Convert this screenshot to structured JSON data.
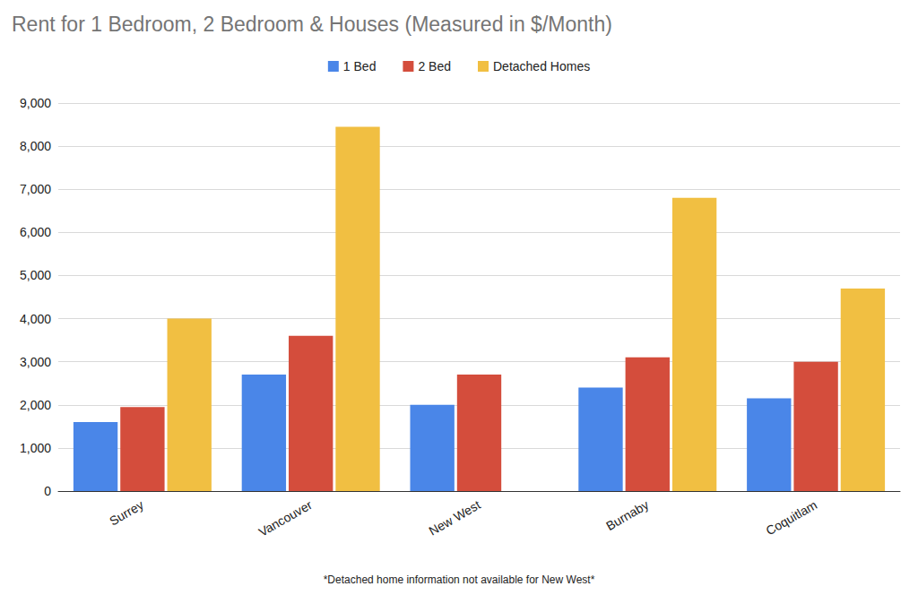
{
  "chart_data": {
    "type": "bar",
    "title": "Rent for 1 Bedroom, 2 Bedroom & Houses (Measured in $/Month)",
    "annotation": "*Detached home information not available for New West*",
    "categories": [
      "Surrey",
      "Vancouver",
      "New West",
      "Burnaby",
      "Coquitlam"
    ],
    "series": [
      {
        "name": "1 Bed",
        "color": "#4a86e8",
        "values": [
          1600,
          2700,
          2000,
          2400,
          2150
        ]
      },
      {
        "name": "2 Bed",
        "color": "#d44d3c",
        "values": [
          1950,
          3600,
          2700,
          3100,
          3000
        ]
      },
      {
        "name": "Detached Homes",
        "color": "#f1bf42",
        "values": [
          4000,
          8450,
          null,
          6800,
          4700
        ]
      }
    ],
    "ylim": [
      0,
      9000
    ],
    "yticks": [
      0,
      {
        "value": 1000,
        "label": "1,000"
      },
      {
        "value": 2000,
        "label": "2,000"
      },
      {
        "value": 3000,
        "label": "3,000"
      },
      {
        "value": 4000,
        "label": "4,000"
      },
      {
        "value": 5000,
        "label": "5,000"
      },
      {
        "value": 6000,
        "label": "6,000"
      },
      {
        "value": 7000,
        "label": "7,000"
      },
      {
        "value": 8000,
        "label": "8,000"
      },
      {
        "value": 9000,
        "label": "9,000"
      }
    ],
    "grid": true,
    "legend": "top"
  }
}
